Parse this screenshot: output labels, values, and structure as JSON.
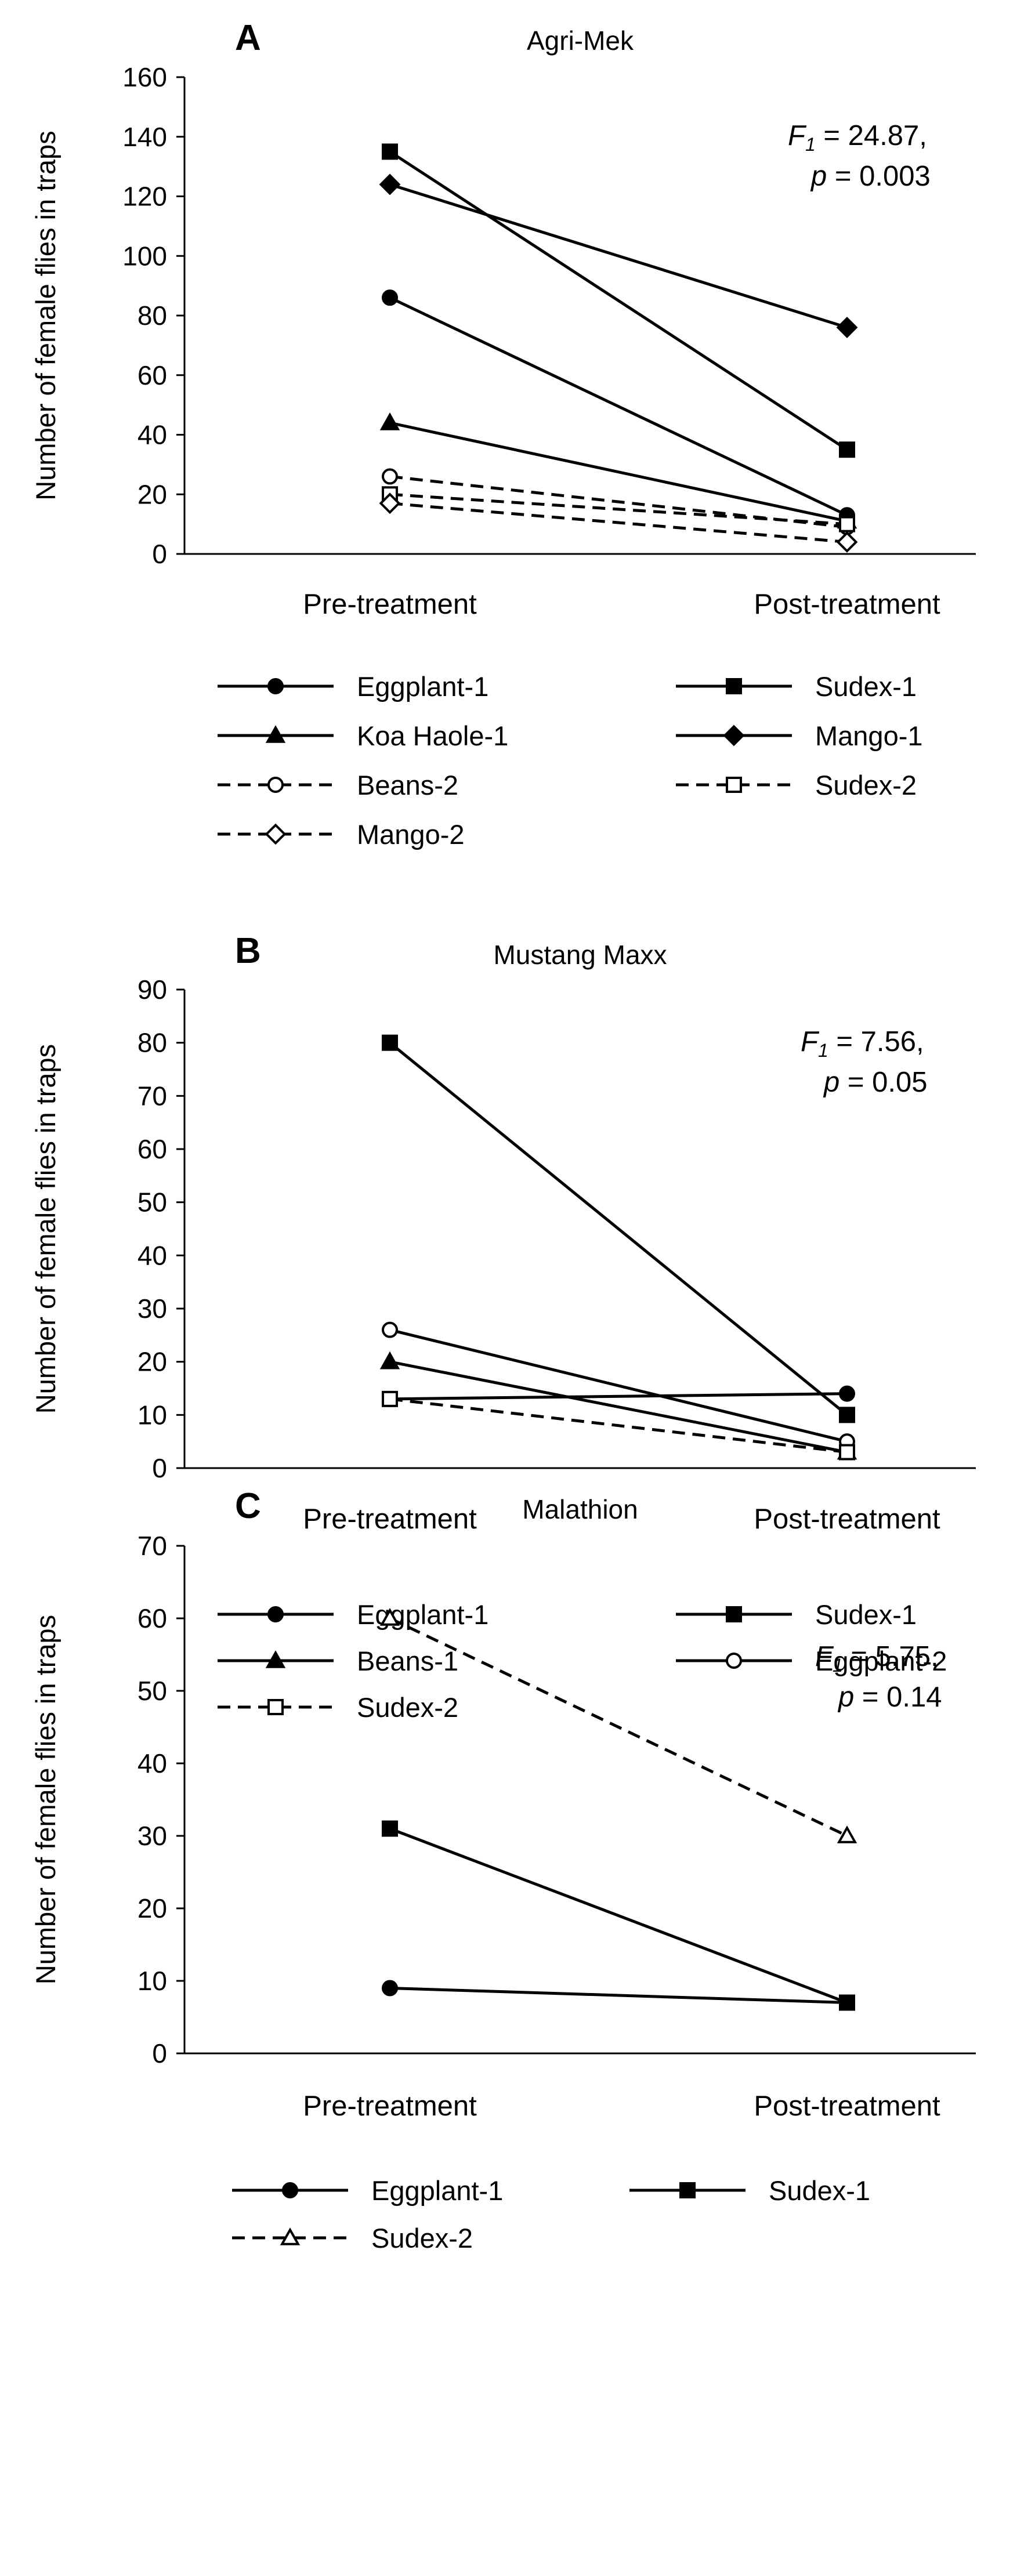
{
  "chart_data": [
    {
      "type": "line",
      "panel": "A",
      "title": "Agri-Mek",
      "ylabel": "Number of female flies in traps",
      "xlabel": "",
      "categories": [
        "Pre-treatment",
        "Post-treatment"
      ],
      "ylim": [
        0,
        160
      ],
      "yticks": [
        0,
        20,
        40,
        60,
        80,
        100,
        120,
        140,
        160
      ],
      "stat": {
        "f_symbol": "F",
        "f_sub": "1",
        "f_value": " = 24.87,",
        "p_symbol": "p",
        "p_value": " = 0.003"
      },
      "series": [
        {
          "name": "Eggplant-1",
          "values": [
            86,
            13
          ],
          "marker": "circle",
          "filled": true,
          "dashed": false
        },
        {
          "name": "Sudex-1",
          "values": [
            135,
            35
          ],
          "marker": "square",
          "filled": true,
          "dashed": false
        },
        {
          "name": "Koa Haole-1",
          "values": [
            44,
            11
          ],
          "marker": "triangle",
          "filled": true,
          "dashed": false
        },
        {
          "name": "Mango-1",
          "values": [
            124,
            76
          ],
          "marker": "diamond",
          "filled": true,
          "dashed": false
        },
        {
          "name": "Beans-2",
          "values": [
            26,
            9
          ],
          "marker": "circle",
          "filled": false,
          "dashed": true
        },
        {
          "name": "Sudex-2",
          "values": [
            20,
            10
          ],
          "marker": "square",
          "filled": false,
          "dashed": true
        },
        {
          "name": "Mango-2",
          "values": [
            17,
            4
          ],
          "marker": "diamond",
          "filled": false,
          "dashed": true
        }
      ]
    },
    {
      "type": "line",
      "panel": "B",
      "title": "Mustang Maxx",
      "ylabel": "Number of female flies in traps",
      "xlabel": "",
      "categories": [
        "Pre-treatment",
        "Post-treatment"
      ],
      "ylim": [
        0,
        90
      ],
      "yticks": [
        0,
        10,
        20,
        30,
        40,
        50,
        60,
        70,
        80,
        90
      ],
      "stat": {
        "f_symbol": "F",
        "f_sub": "1",
        "f_value": " = 7.56,",
        "p_symbol": "p",
        "p_value": " = 0.05"
      },
      "series": [
        {
          "name": "Eggplant-1",
          "values": [
            13,
            14
          ],
          "marker": "circle",
          "filled": true,
          "dashed": false
        },
        {
          "name": "Sudex-1",
          "values": [
            80,
            10
          ],
          "marker": "square",
          "filled": true,
          "dashed": false
        },
        {
          "name": "Beans-1",
          "values": [
            20,
            3
          ],
          "marker": "triangle",
          "filled": true,
          "dashed": false
        },
        {
          "name": "Eggplant-2",
          "values": [
            26,
            5
          ],
          "marker": "circle",
          "filled": false,
          "dashed": false
        },
        {
          "name": "Sudex-2",
          "values": [
            13,
            3
          ],
          "marker": "square",
          "filled": false,
          "dashed": true
        }
      ]
    },
    {
      "type": "line",
      "panel": "C",
      "title": "Malathion",
      "ylabel": "Number of female flies in traps",
      "xlabel": "",
      "categories": [
        "Pre-treatment",
        "Post-treatment"
      ],
      "ylim": [
        0,
        70
      ],
      "yticks": [
        0,
        10,
        20,
        30,
        40,
        50,
        60,
        70
      ],
      "stat": {
        "f_symbol": "F",
        "f_sub": "1",
        "f_value": " = 5.75,",
        "p_symbol": "p",
        "p_value": " = 0.14"
      },
      "series": [
        {
          "name": "Eggplant-1",
          "values": [
            9,
            7
          ],
          "marker": "circle",
          "filled": true,
          "dashed": false
        },
        {
          "name": "Sudex-1",
          "values": [
            31,
            7
          ],
          "marker": "square",
          "filled": true,
          "dashed": false
        },
        {
          "name": "Sudex-2",
          "values": [
            60,
            30
          ],
          "marker": "triangle",
          "filled": false,
          "dashed": true
        }
      ]
    }
  ]
}
